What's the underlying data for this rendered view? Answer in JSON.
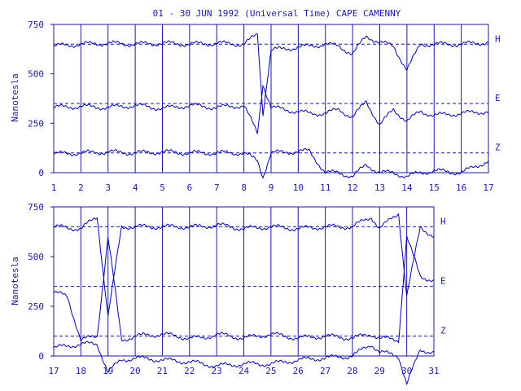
{
  "colors": {
    "foreground": "#1a1aa6",
    "trace": "#0000aa",
    "background": "#ffffff"
  },
  "chart_data": [
    {
      "type": "line",
      "title": "01 - 30 JUN 1992 (Universal Time) CAPE CAMENNY",
      "ylabel": "Nanotesla",
      "xlabel": "",
      "xlim": [
        1,
        17
      ],
      "ylim": [
        0,
        750
      ],
      "yticks": [
        0,
        250,
        500,
        750
      ],
      "xtick_labels": [
        "1",
        "2",
        "3",
        "4",
        "5",
        "6",
        "7",
        "8",
        "9",
        "10",
        "11",
        "12",
        "13",
        "14",
        "15",
        "16",
        "17"
      ],
      "grid": "vertical lines at day boundaries",
      "reference_lines": [
        {
          "name": "H",
          "value": 650
        },
        {
          "name": "E",
          "value": 350
        },
        {
          "name": "Z",
          "value": 100
        }
      ],
      "series": [
        {
          "name": "H",
          "baseline": 650,
          "x": [
            1,
            2,
            3,
            4,
            5,
            6,
            7,
            8,
            8.5,
            8.7,
            9,
            10.4,
            11,
            11.5,
            12,
            12.5,
            13,
            13.5,
            14,
            14.5,
            15,
            16,
            17
          ],
          "values": [
            640,
            650,
            655,
            650,
            655,
            650,
            655,
            650,
            700,
            300,
            620,
            640,
            650,
            640,
            600,
            690,
            660,
            640,
            520,
            650,
            650,
            650,
            660
          ]
        },
        {
          "name": "E",
          "baseline": 350,
          "x": [
            1,
            2,
            3,
            4,
            5,
            6,
            7,
            8,
            8.5,
            8.7,
            9,
            10.4,
            11,
            11.5,
            12,
            12.5,
            13,
            13.5,
            14,
            14.5,
            15,
            16,
            17
          ],
          "values": [
            330,
            335,
            330,
            340,
            325,
            340,
            330,
            340,
            200,
            450,
            330,
            300,
            300,
            320,
            280,
            360,
            240,
            320,
            260,
            310,
            290,
            300,
            310
          ]
        },
        {
          "name": "Z",
          "baseline": 100,
          "x": [
            1,
            2,
            3,
            4,
            5,
            6,
            7,
            8,
            8.5,
            8.7,
            9,
            10.4,
            11,
            11.5,
            12,
            12.5,
            13,
            13.5,
            14,
            14.5,
            15,
            16,
            17
          ],
          "values": [
            95,
            100,
            105,
            100,
            105,
            100,
            100,
            100,
            60,
            -20,
            100,
            110,
            0,
            0,
            -20,
            40,
            0,
            0,
            -20,
            0,
            10,
            0,
            60
          ]
        }
      ]
    },
    {
      "type": "line",
      "title": "",
      "ylabel": "Nanotesla",
      "xlabel": "",
      "xlim": [
        17,
        31
      ],
      "ylim": [
        0,
        750
      ],
      "yticks": [
        0,
        250,
        500,
        750
      ],
      "xtick_labels": [
        "17",
        "18",
        "19",
        "20",
        "21",
        "22",
        "23",
        "24",
        "25",
        "26",
        "27",
        "28",
        "29",
        "30",
        "31"
      ],
      "grid": "vertical lines at day boundaries",
      "reference_lines": [
        {
          "name": "H",
          "value": 650
        },
        {
          "name": "E",
          "value": 350
        },
        {
          "name": "Z",
          "value": 100
        }
      ],
      "series": [
        {
          "name": "H",
          "baseline": 650,
          "x": [
            17,
            18,
            18.6,
            19,
            19.5,
            20,
            21,
            22,
            22.5,
            23,
            24,
            25,
            26,
            27,
            28,
            28.7,
            29,
            29.7,
            30,
            30.5,
            31
          ],
          "values": [
            650,
            640,
            700,
            200,
            650,
            650,
            650,
            650,
            650,
            660,
            640,
            650,
            640,
            650,
            650,
            700,
            640,
            720,
            300,
            650,
            600
          ]
        },
        {
          "name": "E",
          "baseline": 350,
          "x": [
            17,
            17.5,
            18,
            18.6,
            19,
            19.5,
            20,
            21,
            22,
            22.5,
            23,
            24,
            25,
            26,
            27,
            28,
            28.7,
            29,
            29.7,
            30,
            30.5,
            31
          ],
          "values": [
            320,
            300,
            80,
            100,
            600,
            80,
            100,
            110,
            90,
            90,
            110,
            90,
            110,
            90,
            100,
            90,
            110,
            90,
            80,
            600,
            400,
            380
          ]
        },
        {
          "name": "Z",
          "baseline": 100,
          "x": [
            17,
            18,
            18.6,
            19,
            19.5,
            20,
            21,
            22,
            22.5,
            23,
            24,
            25,
            26,
            27,
            28,
            28.7,
            29,
            29.7,
            30,
            30.5,
            31
          ],
          "values": [
            40,
            60,
            60,
            -80,
            -20,
            -10,
            -20,
            -30,
            -40,
            -50,
            -40,
            -40,
            -20,
            -10,
            0,
            60,
            20,
            0,
            -140,
            30,
            20
          ]
        }
      ]
    }
  ]
}
